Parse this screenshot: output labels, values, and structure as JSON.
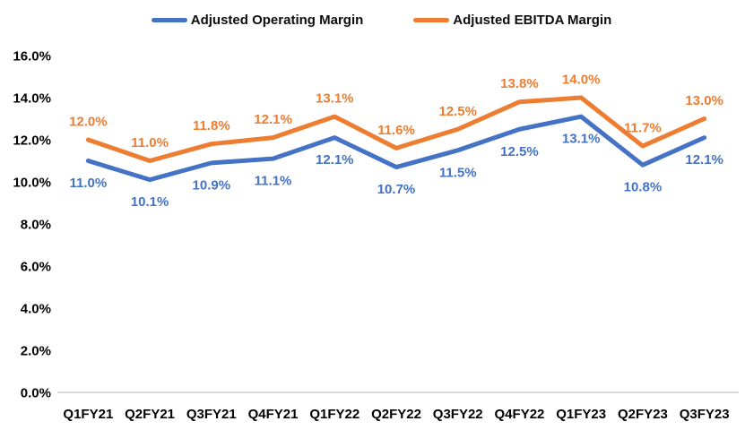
{
  "chart_data": {
    "type": "line",
    "title": "",
    "categories": [
      "Q1FY21",
      "Q2FY21",
      "Q3FY21",
      "Q4FY21",
      "Q1FY22",
      "Q2FY22",
      "Q3FY22",
      "Q4FY22",
      "Q1FY23",
      "Q2FY23",
      "Q3FY23"
    ],
    "series": [
      {
        "name": "Adjusted Operating Margin",
        "color": "#4472C4",
        "values": [
          11.0,
          10.1,
          10.9,
          11.1,
          12.1,
          10.7,
          11.5,
          12.5,
          13.1,
          10.8,
          12.1
        ],
        "labels": [
          "11.0%",
          "10.1%",
          "10.9%",
          "11.1%",
          "12.1%",
          "10.7%",
          "11.5%",
          "12.5%",
          "13.1%",
          "10.8%",
          "12.1%"
        ],
        "label_position": "below"
      },
      {
        "name": "Adjusted EBITDA Margin",
        "color": "#ED7D31",
        "values": [
          12.0,
          11.0,
          11.8,
          12.1,
          13.1,
          11.6,
          12.5,
          13.8,
          14.0,
          11.7,
          13.0
        ],
        "labels": [
          "12.0%",
          "11.0%",
          "11.8%",
          "12.1%",
          "13.1%",
          "11.6%",
          "12.5%",
          "13.8%",
          "14.0%",
          "11.7%",
          "13.0%"
        ],
        "label_position": "above"
      }
    ],
    "xlabel": "",
    "ylabel": "",
    "ylim": [
      0,
      16
    ],
    "ytick_step": 2,
    "ytick_labels": [
      "0.0%",
      "2.0%",
      "4.0%",
      "6.0%",
      "8.0%",
      "10.0%",
      "12.0%",
      "14.0%",
      "16.0%"
    ],
    "grid": false,
    "legend_position": "top",
    "axis_line_color": "#D9D9D9",
    "axis_text_color": "#000000"
  }
}
